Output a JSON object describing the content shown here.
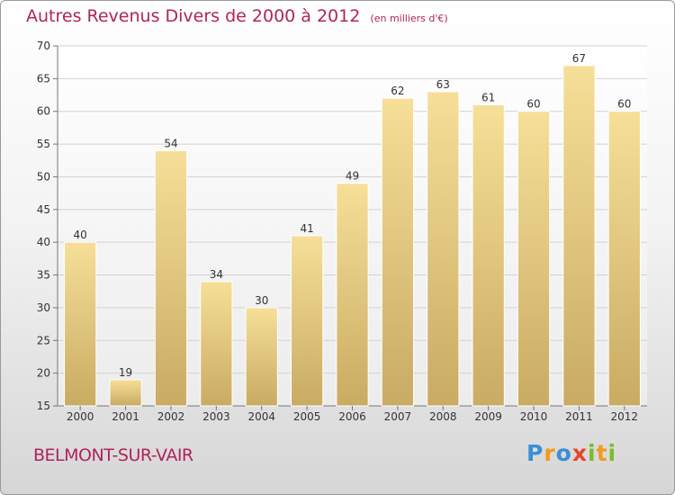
{
  "chart_data": {
    "type": "bar",
    "title": "Autres Revenus Divers de 2000 à 2012",
    "subtitle": "(en milliers d'€)",
    "categories": [
      "2000",
      "2001",
      "2002",
      "2003",
      "2004",
      "2005",
      "2006",
      "2007",
      "2008",
      "2009",
      "2010",
      "2011",
      "2012"
    ],
    "values": [
      40,
      19,
      54,
      34,
      30,
      41,
      49,
      62,
      63,
      61,
      60,
      67,
      60
    ],
    "ylim": [
      15,
      70
    ],
    "yticks": [
      15,
      20,
      25,
      30,
      35,
      40,
      45,
      50,
      55,
      60,
      65,
      70
    ],
    "grid": true,
    "bar_color": "#e3c77d"
  },
  "footer": {
    "commune": "BELMONT-SUR-VAIR",
    "logo_letters": [
      "P",
      "r",
      "o",
      "x",
      "i",
      "t",
      "i"
    ],
    "logo_colors": [
      "#3a8fd6",
      "#f29a1e",
      "#3a8fd6",
      "#e8452c",
      "#7cbb2a",
      "#f29a1e",
      "#7cbb2a"
    ]
  }
}
